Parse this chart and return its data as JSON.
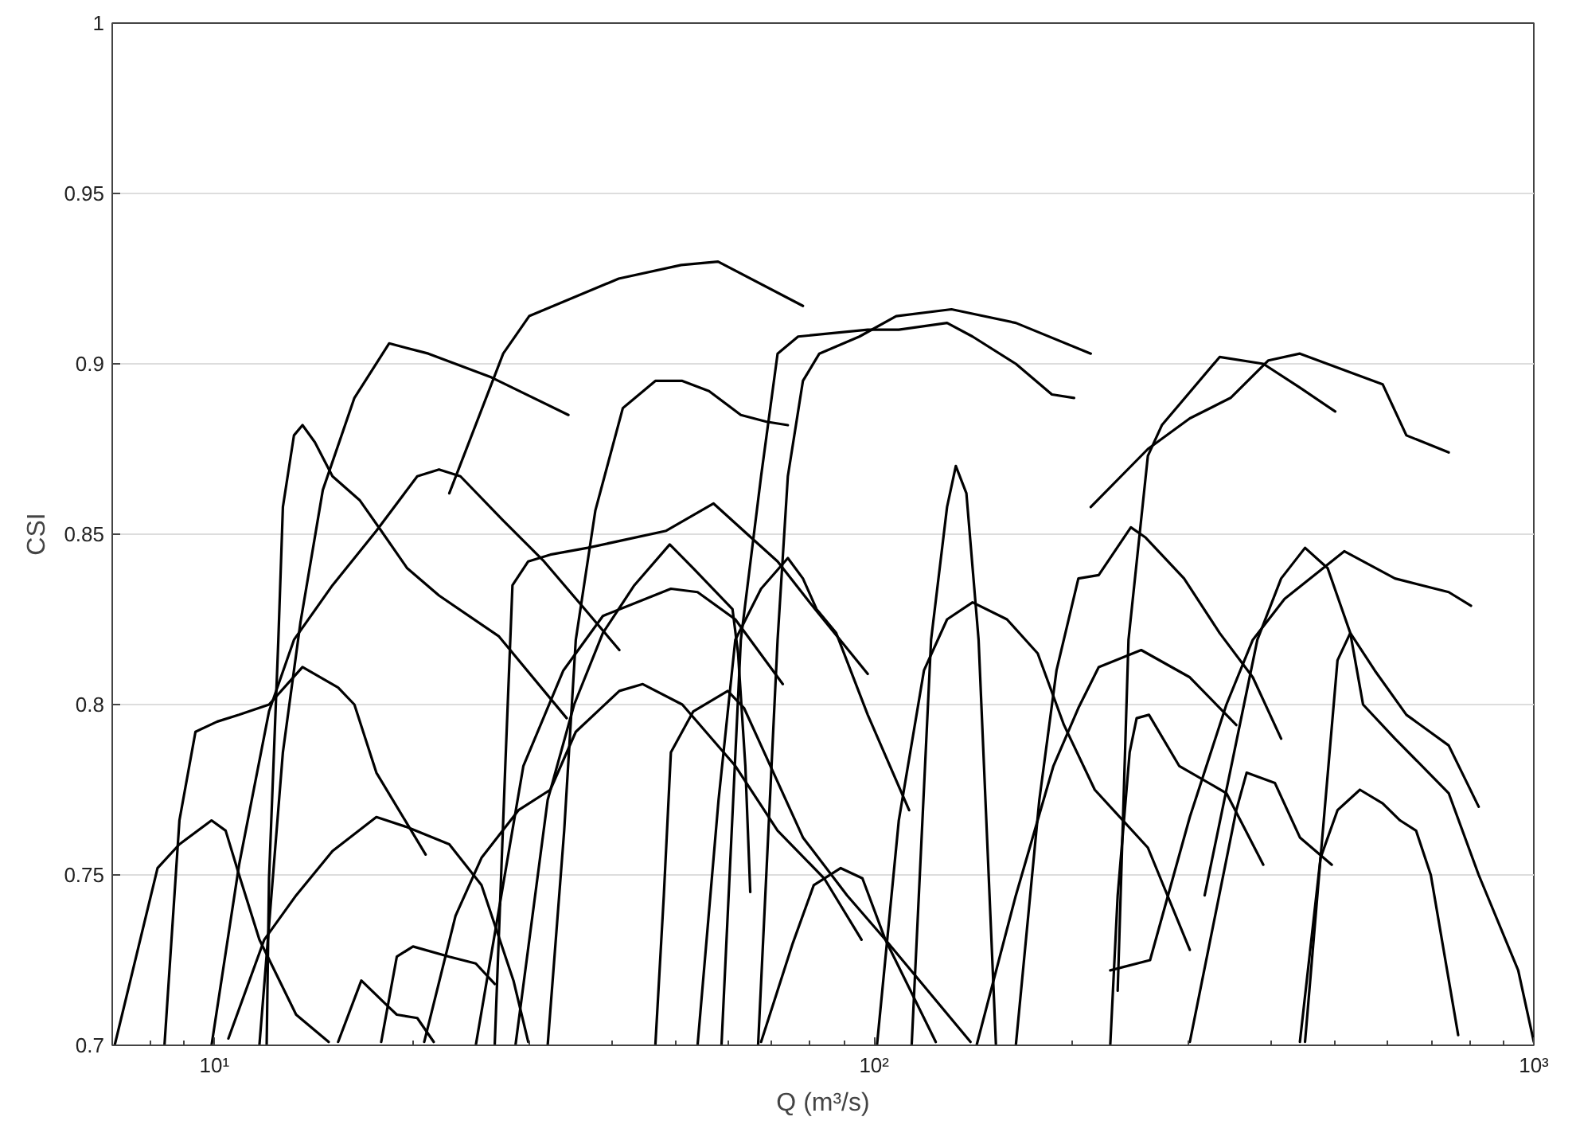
{
  "chart_data": {
    "type": "line",
    "xlabel": "Q (m³/s)",
    "ylabel": "CSI",
    "log": "x",
    "grid": "y",
    "xlim": [
      7,
      1000
    ],
    "ylim": [
      0.7,
      1
    ],
    "xticks": [
      {
        "value": 10,
        "label": "10¹"
      },
      {
        "value": 100,
        "label": "10²"
      },
      {
        "value": 1000,
        "label": "10³"
      }
    ],
    "yticks": [
      0.7,
      0.75,
      0.8,
      0.85,
      0.9,
      0.95,
      1
    ],
    "series": [
      {
        "color": "#000000",
        "x": [
          22.7,
          27.4,
          30,
          41,
          51,
          58,
          78
        ],
        "values": [
          0.862,
          0.903,
          0.914,
          0.925,
          0.929,
          0.93,
          0.917
        ]
      },
      {
        "color": "#000000",
        "x": [
          11.7,
          12.7,
          13.5,
          14.6,
          16.3,
          18.4,
          21.1,
          26.3,
          34.4
        ],
        "values": [
          0.7,
          0.786,
          0.824,
          0.863,
          0.89,
          0.906,
          0.903,
          0.896,
          0.885
        ]
      },
      {
        "color": "#000000",
        "x": [
          12.0,
          12.1,
          12.5,
          12.7,
          13.2,
          13.6,
          14.2,
          15.1,
          16.6,
          17.9,
          19.6,
          21.9,
          27.0,
          34.2
        ],
        "values": [
          0.7,
          0.749,
          0.819,
          0.858,
          0.879,
          0.882,
          0.877,
          0.867,
          0.86,
          0.851,
          0.84,
          0.832,
          0.82,
          0.796
        ]
      },
      {
        "color": "#000000",
        "x": [
          9.9,
          10.9,
          12.1,
          13.2,
          15.1,
          17.6,
          20.3,
          21.9,
          23.6,
          27.4,
          31.6,
          36.8,
          41.1
        ],
        "values": [
          0.7,
          0.753,
          0.798,
          0.819,
          0.835,
          0.851,
          0.867,
          0.869,
          0.867,
          0.854,
          0.842,
          0.827,
          0.816
        ]
      },
      {
        "color": "#000000",
        "x": [
          8.4,
          8.85,
          9.36,
          10.1,
          10.9,
          12.1,
          13.6,
          15.4,
          16.3,
          17.6,
          20.9
        ],
        "values": [
          0.7,
          0.766,
          0.792,
          0.795,
          0.797,
          0.8,
          0.811,
          0.805,
          0.8,
          0.78,
          0.756
        ]
      },
      {
        "color": "#000000",
        "x": [
          7.06,
          8.2,
          8.85,
          9.9,
          10.4,
          10.9,
          11.7,
          13.3,
          14.9
        ],
        "values": [
          0.7,
          0.752,
          0.759,
          0.766,
          0.763,
          0.75,
          0.731,
          0.709,
          0.701
        ]
      },
      {
        "color": "#000000",
        "x": [
          10.5,
          11.9,
          13.3,
          15.1,
          17.6,
          19.6,
          22.7,
          25.4,
          28.4,
          29.9
        ],
        "values": [
          0.702,
          0.731,
          0.744,
          0.757,
          0.767,
          0.764,
          0.759,
          0.747,
          0.719,
          0.701
        ]
      },
      {
        "color": "#000000",
        "x": [
          15.4,
          16.7,
          18.2,
          18.9,
          20.3,
          21.5
        ],
        "values": [
          0.701,
          0.719,
          0.712,
          0.709,
          0.708,
          0.701
        ]
      },
      {
        "color": "#000000",
        "x": [
          17.9,
          18.9,
          20,
          22.7,
          24.9,
          26.6
        ],
        "values": [
          0.701,
          0.726,
          0.729,
          0.726,
          0.724,
          0.718
        ]
      },
      {
        "color": "#000000",
        "x": [
          20.8,
          23.2,
          25.4,
          28.9,
          32.3,
          35.3,
          41.1,
          44.6,
          51.2,
          61.6,
          71.4,
          84,
          95.7
        ],
        "values": [
          0.701,
          0.738,
          0.755,
          0.769,
          0.775,
          0.792,
          0.804,
          0.806,
          0.8,
          0.782,
          0.763,
          0.749,
          0.731
        ]
      },
      {
        "color": "#000000",
        "x": [
          32,
          33.9,
          35.3,
          37.8,
          41.6,
          46.6,
          51.2,
          56.2,
          62.8,
          68.7,
          74
        ],
        "values": [
          0.7,
          0.763,
          0.819,
          0.857,
          0.887,
          0.895,
          0.895,
          0.892,
          0.885,
          0.883,
          0.882
        ]
      },
      {
        "color": "#000000",
        "x": [
          58.7,
          62.8,
          67.4,
          71.4,
          76.7,
          97.8,
          109,
          129,
          141,
          164,
          186,
          201
        ],
        "values": [
          0.7,
          0.819,
          0.867,
          0.903,
          0.908,
          0.91,
          0.91,
          0.912,
          0.908,
          0.9,
          0.891,
          0.89
        ]
      },
      {
        "color": "#000000",
        "x": [
          66.7,
          71.4,
          74,
          78,
          82.6,
          95,
          108,
          131,
          164,
          213
        ],
        "values": [
          0.7,
          0.819,
          0.867,
          0.895,
          0.903,
          0.908,
          0.914,
          0.916,
          0.912,
          0.903
        ]
      },
      {
        "color": "#000000",
        "x": [
          114,
          122,
          129,
          133,
          138,
          144,
          153
        ],
        "values": [
          0.7,
          0.819,
          0.858,
          0.87,
          0.862,
          0.819,
          0.7
        ]
      },
      {
        "color": "#000000",
        "x": [
          26.6,
          27.6,
          28.3,
          29.9,
          32.3,
          36.8,
          48.4,
          57.1,
          65.1,
          71.4,
          80.6,
          97.8
        ],
        "values": [
          0.7,
          0.782,
          0.835,
          0.842,
          0.844,
          0.846,
          0.851,
          0.859,
          0.849,
          0.842,
          0.829,
          0.809
        ]
      },
      {
        "color": "#000000",
        "x": [
          28.6,
          32,
          35.1,
          38.8,
          43.3,
          49,
          53.2,
          61,
          62.2,
          63.8,
          64.9
        ],
        "values": [
          0.7,
          0.772,
          0.8,
          0.821,
          0.835,
          0.847,
          0.84,
          0.828,
          0.815,
          0.782,
          0.745
        ]
      },
      {
        "color": "#000000",
        "x": [
          24.9,
          29.4,
          33.8,
          38.8,
          49.2,
          54,
          61.6,
          72.7
        ],
        "values": [
          0.7,
          0.782,
          0.81,
          0.826,
          0.834,
          0.833,
          0.825,
          0.806
        ]
      },
      {
        "color": "#000000",
        "x": [
          46.6,
          48,
          49.2,
          53.2,
          60,
          63.5,
          67.4,
          78,
          91,
          104,
          140
        ],
        "values": [
          0.7,
          0.744,
          0.786,
          0.798,
          0.804,
          0.799,
          0.788,
          0.761,
          0.744,
          0.731,
          0.701
        ]
      },
      {
        "color": "#000000",
        "x": [
          54,
          58.1,
          61.6,
          67.4,
          74,
          78,
          81.8,
          87.6,
          97.8,
          113
        ],
        "values": [
          0.7,
          0.772,
          0.819,
          0.834,
          0.843,
          0.837,
          0.828,
          0.821,
          0.797,
          0.769
        ]
      },
      {
        "color": "#000000",
        "x": [
          101,
          109,
          119,
          129,
          141,
          159,
          177,
          194,
          216,
          260,
          301
        ],
        "values": [
          0.7,
          0.766,
          0.81,
          0.825,
          0.83,
          0.825,
          0.815,
          0.794,
          0.775,
          0.758,
          0.728
        ]
      },
      {
        "color": "#000000",
        "x": [
          164,
          178,
          189,
          204,
          219,
          245,
          258,
          295,
          334,
          375,
          414
        ],
        "values": [
          0.7,
          0.772,
          0.81,
          0.837,
          0.838,
          0.852,
          0.849,
          0.837,
          0.821,
          0.808,
          0.79
        ]
      },
      {
        "color": "#000000",
        "x": [
          143,
          164,
          187,
          204,
          219,
          254,
          301,
          354
        ],
        "values": [
          0.7,
          0.744,
          0.782,
          0.799,
          0.811,
          0.816,
          0.808,
          0.794
        ]
      },
      {
        "color": "#000000",
        "x": [
          228,
          234,
          244,
          250,
          261,
          290,
          342,
          389
        ],
        "values": [
          0.7,
          0.744,
          0.786,
          0.796,
          0.797,
          0.782,
          0.774,
          0.753
        ]
      },
      {
        "color": "#000000",
        "x": [
          301,
          354,
          367,
          405,
          442,
          494
        ],
        "values": [
          0.701,
          0.769,
          0.78,
          0.777,
          0.761,
          0.753
        ]
      },
      {
        "color": "#000000",
        "x": [
          442,
          475,
          504,
          527,
          574,
          641,
          743,
          825
        ],
        "values": [
          0.701,
          0.755,
          0.813,
          0.821,
          0.81,
          0.797,
          0.788,
          0.77
        ]
      },
      {
        "color": "#000000",
        "x": [
          450,
          475,
          504,
          545,
          590,
          627,
          663,
          698,
          768
        ],
        "values": [
          0.701,
          0.755,
          0.769,
          0.775,
          0.771,
          0.766,
          0.763,
          0.75,
          0.703
        ]
      },
      {
        "color": "#000000",
        "x": [
          228,
          262,
          301,
          342,
          375,
          419,
          516,
          616,
          743,
          803
        ],
        "values": [
          0.722,
          0.725,
          0.767,
          0.8,
          0.819,
          0.831,
          0.845,
          0.837,
          0.833,
          0.829
        ]
      },
      {
        "color": "#000000",
        "x": [
          317,
          381,
          414,
          450,
          487,
          527,
          551,
          616,
          743,
          825,
          947,
          1000
        ],
        "values": [
          0.744,
          0.819,
          0.837,
          0.846,
          0.84,
          0.821,
          0.8,
          0.79,
          0.774,
          0.75,
          0.722,
          0.701
        ]
      },
      {
        "color": "#000000",
        "x": [
          213,
          260,
          301,
          347,
          396,
          442,
          535,
          590,
          641,
          743
        ],
        "values": [
          0.858,
          0.875,
          0.884,
          0.89,
          0.901,
          0.903,
          0.897,
          0.894,
          0.879,
          0.874
        ]
      },
      {
        "color": "#000000",
        "x": [
          234,
          243,
          260,
          273,
          334,
          389,
          442,
          500
        ],
        "values": [
          0.716,
          0.819,
          0.873,
          0.882,
          0.902,
          0.9,
          0.893,
          0.886
        ]
      },
      {
        "color": "#000000",
        "x": [
          67.4,
          75.3,
          81,
          89,
          96,
          104,
          124
        ],
        "values": [
          0.701,
          0.73,
          0.747,
          0.752,
          0.749,
          0.731,
          0.701
        ]
      }
    ]
  }
}
